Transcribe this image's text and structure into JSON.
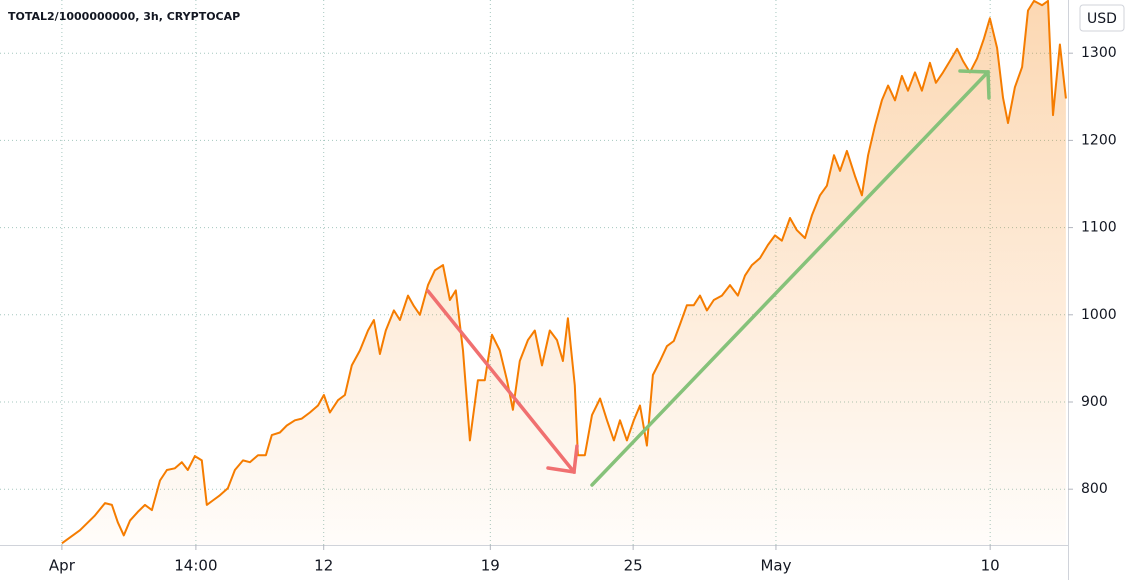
{
  "chart_data": {
    "type": "area",
    "title": "TOTAL2/1000000000, 3h, CRYPTOCAP",
    "currency": "USD",
    "color": "#f57c00",
    "x": [
      0,
      0.76,
      1.39,
      1.81,
      2.1,
      2.35,
      2.6,
      2.86,
      3.19,
      3.49,
      3.78,
      4.12,
      4.41,
      4.75,
      5.04,
      5.29,
      5.59,
      5.88,
      6.09,
      6.34,
      6.64,
      6.97,
      7.27,
      7.61,
      7.9,
      8.24,
      8.57,
      8.82,
      9.16,
      9.45,
      9.79,
      10.08,
      10.42,
      10.76,
      11.01,
      11.26,
      11.6,
      11.89,
      12.18,
      12.52,
      12.86,
      13.11,
      13.36,
      13.61,
      13.95,
      14.2,
      14.54,
      14.79,
      15.04,
      15.38,
      15.67,
      16.01,
      16.3,
      16.55,
      16.85,
      17.14,
      17.48,
      17.77,
      18.07,
      18.4,
      18.7,
      18.95,
      19.24,
      19.58,
      19.87,
      20.17,
      20.5,
      20.8,
      21.05,
      21.26,
      21.55,
      21.68,
      21.97,
      22.27,
      22.61,
      22.9,
      23.19,
      23.45,
      23.74,
      24.03,
      24.29,
      24.58,
      24.83,
      25.13,
      25.42,
      25.71,
      25.97,
      26.26,
      26.55,
      26.81,
      27.1,
      27.39,
      27.73,
      28.07,
      28.4,
      28.7,
      28.99,
      29.33,
      29.66,
      29.96,
      30.25,
      30.59,
      30.88,
      31.22,
      31.51,
      31.85,
      32.14,
      32.44,
      32.69,
      32.98,
      33.32,
      33.61,
      33.87,
      34.16,
      34.45,
      34.71,
      35,
      35.29,
      35.55,
      35.84,
      36.13,
      36.47,
      36.72,
      37.02,
      37.31,
      37.61,
      37.86,
      38.15,
      38.45,
      38.74,
      38.99,
      39.29,
      39.54,
      39.75,
      40.04,
      40.34,
      40.59,
      40.84,
      41.18,
      41.43,
      41.64,
      41.93,
      42.18
    ],
    "values": [
      738,
      753,
      770,
      784,
      782,
      762,
      747,
      764,
      774,
      782,
      776,
      810,
      822,
      824,
      831,
      822,
      838,
      833,
      782,
      787,
      793,
      801,
      822,
      833,
      831,
      839,
      839,
      862,
      865,
      873,
      879,
      881,
      888,
      896,
      908,
      888,
      902,
      908,
      942,
      959,
      982,
      994,
      955,
      982,
      1005,
      994,
      1022,
      1010,
      1000,
      1034,
      1051,
      1057,
      1017,
      1028,
      959,
      856,
      925,
      925,
      977,
      959,
      925,
      891,
      947,
      971,
      982,
      942,
      982,
      971,
      947,
      996,
      919,
      839,
      839,
      885,
      904,
      879,
      856,
      879,
      856,
      879,
      896,
      850,
      931,
      947,
      964,
      970,
      989,
      1011,
      1011,
      1022,
      1005,
      1017,
      1022,
      1034,
      1022,
      1045,
      1057,
      1065,
      1080,
      1091,
      1085,
      1111,
      1097,
      1088,
      1114,
      1137,
      1148,
      1183,
      1165,
      1188,
      1159,
      1137,
      1183,
      1217,
      1246,
      1263,
      1246,
      1274,
      1257,
      1278,
      1257,
      1289,
      1266,
      1278,
      1291,
      1305,
      1291,
      1278,
      1294,
      1317,
      1340,
      1306,
      1249,
      1220,
      1261,
      1284,
      1349,
      1360,
      1355,
      1360,
      1229,
      1310,
      1248
    ],
    "xlim": [
      -2.6,
      42.27
    ],
    "ylim": [
      736,
      1361
    ],
    "xticks": [
      {
        "value": 0,
        "label": "Apr"
      },
      {
        "value": 5.63,
        "label": "14:00"
      },
      {
        "value": 11,
        "label": "12"
      },
      {
        "value": 18,
        "label": "19"
      },
      {
        "value": 24,
        "label": "25"
      },
      {
        "value": 30,
        "label": "May"
      },
      {
        "value": 39,
        "label": "10"
      }
    ],
    "yticks": [
      800,
      900,
      1000,
      1100,
      1200,
      1300
    ],
    "grid": true
  }
}
